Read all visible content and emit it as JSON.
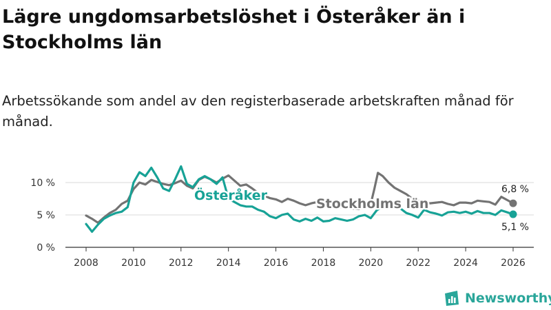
{
  "title": "Lägre ungdomsarbetslöshet i Österåker än i Stockholms län",
  "subtitle": "Arbetssökande som andel av den registerbaserade arbetskraften månad för månad.",
  "brand": {
    "name": "Newsworthy"
  },
  "colors": {
    "osteraker": "#17a296",
    "stockholm": "#737373",
    "grid": "#d9d9d9",
    "axis": "#333333"
  },
  "chart_data": {
    "type": "line",
    "title": "Lägre ungdomsarbetslöshet i Österåker än i Stockholms län",
    "xlabel": "",
    "ylabel": "",
    "xlim": [
      2007.4,
      2026.7
    ],
    "ylim": [
      0,
      13
    ],
    "y_ticks": [
      0,
      5,
      10
    ],
    "y_tick_labels": [
      "0 %",
      "5 %",
      "10 %"
    ],
    "x_ticks": [
      2008,
      2010,
      2012,
      2014,
      2016,
      2018,
      2020,
      2022,
      2024,
      2026
    ],
    "x_tick_labels": [
      "2008",
      "2010",
      "2012",
      "2014",
      "2016",
      "2018",
      "2020",
      "2022",
      "2024",
      "2026"
    ],
    "series": [
      {
        "name": "Stockholms län",
        "label": "Stockholms län",
        "end_label": "6,8 %",
        "color": "#737373",
        "x": [
          2008.0,
          2008.25,
          2008.5,
          2008.75,
          2009.0,
          2009.25,
          2009.5,
          2009.75,
          2010.0,
          2010.25,
          2010.5,
          2010.75,
          2011.0,
          2011.25,
          2011.5,
          2011.75,
          2012.0,
          2012.25,
          2012.5,
          2012.75,
          2013.0,
          2013.25,
          2013.5,
          2013.75,
          2014.0,
          2014.25,
          2014.5,
          2014.75,
          2015.0,
          2015.25,
          2015.5,
          2015.75,
          2016.0,
          2016.25,
          2016.5,
          2016.75,
          2017.0,
          2017.25,
          2017.5,
          2017.75,
          2018.0,
          2018.25,
          2018.5,
          2018.75,
          2019.0,
          2019.25,
          2019.5,
          2019.75,
          2020.0,
          2020.15,
          2020.3,
          2020.5,
          2020.75,
          2021.0,
          2021.25,
          2021.5,
          2021.75,
          2022.0,
          2022.25,
          2022.5,
          2022.75,
          2023.0,
          2023.25,
          2023.5,
          2023.75,
          2024.0,
          2024.25,
          2024.5,
          2024.75,
          2025.0,
          2025.25,
          2025.5,
          2025.75,
          2026.0
        ],
        "values": [
          4.9,
          4.4,
          3.8,
          4.6,
          5.3,
          5.8,
          6.7,
          7.2,
          9.0,
          10.0,
          9.7,
          10.4,
          10.1,
          9.8,
          9.6,
          9.9,
          10.3,
          9.5,
          9.1,
          10.4,
          10.9,
          10.5,
          10.0,
          10.6,
          11.1,
          10.3,
          9.5,
          9.7,
          9.1,
          8.4,
          8.0,
          7.6,
          7.4,
          7.0,
          7.5,
          7.2,
          6.8,
          6.5,
          6.8,
          7.0,
          6.8,
          6.6,
          6.5,
          6.2,
          6.1,
          6.0,
          5.9,
          6.2,
          6.7,
          9.0,
          11.5,
          11.0,
          10.0,
          9.2,
          8.7,
          8.2,
          7.5,
          7.2,
          7.0,
          6.8,
          6.9,
          7.0,
          6.7,
          6.5,
          6.9,
          6.9,
          6.8,
          7.2,
          7.1,
          7.0,
          6.6,
          7.8,
          7.3,
          6.8
        ]
      },
      {
        "name": "Österåker",
        "label": "Österåker",
        "end_label": "5,1 %",
        "color": "#17a296",
        "x": [
          2008.0,
          2008.25,
          2008.5,
          2008.75,
          2009.0,
          2009.25,
          2009.5,
          2009.75,
          2010.0,
          2010.25,
          2010.5,
          2010.75,
          2011.0,
          2011.25,
          2011.5,
          2011.75,
          2012.0,
          2012.25,
          2012.5,
          2012.75,
          2013.0,
          2013.25,
          2013.5,
          2013.75,
          2014.0,
          2014.25,
          2014.5,
          2014.75,
          2015.0,
          2015.25,
          2015.5,
          2015.75,
          2016.0,
          2016.25,
          2016.5,
          2016.75,
          2017.0,
          2017.25,
          2017.5,
          2017.75,
          2018.0,
          2018.25,
          2018.5,
          2018.75,
          2019.0,
          2019.25,
          2019.5,
          2019.75,
          2020.0,
          2020.25,
          2020.5,
          2020.75,
          2021.0,
          2021.25,
          2021.5,
          2021.75,
          2022.0,
          2022.25,
          2022.5,
          2022.75,
          2023.0,
          2023.25,
          2023.5,
          2023.75,
          2024.0,
          2024.25,
          2024.5,
          2024.75,
          2025.0,
          2025.25,
          2025.5,
          2025.75,
          2026.0
        ],
        "values": [
          3.6,
          2.4,
          3.5,
          4.4,
          4.9,
          5.3,
          5.5,
          6.2,
          10.0,
          11.6,
          11.0,
          12.3,
          10.8,
          9.1,
          8.7,
          10.5,
          12.5,
          9.8,
          9.3,
          10.5,
          11.0,
          10.5,
          9.8,
          10.8,
          7.5,
          7.0,
          6.5,
          6.3,
          6.3,
          5.8,
          5.5,
          4.8,
          4.5,
          5.0,
          5.2,
          4.3,
          4.0,
          4.4,
          4.1,
          4.6,
          4.0,
          4.1,
          4.5,
          4.3,
          4.1,
          4.3,
          4.8,
          5.0,
          4.5,
          5.7,
          6.3,
          6.8,
          6.5,
          6.0,
          5.3,
          5.0,
          4.6,
          5.8,
          5.4,
          5.2,
          4.9,
          5.4,
          5.5,
          5.3,
          5.5,
          5.2,
          5.6,
          5.3,
          5.3,
          5.0,
          5.7,
          5.4,
          5.1
        ]
      }
    ]
  }
}
